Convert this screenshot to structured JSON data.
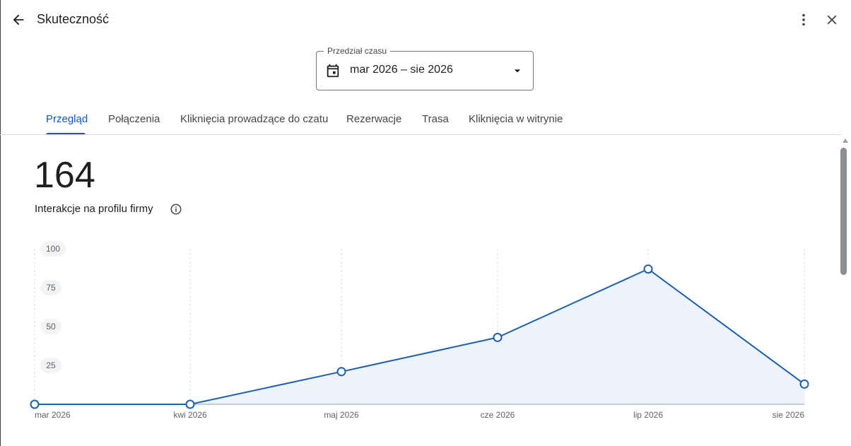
{
  "header": {
    "title": "Skuteczność",
    "back_icon": "arrow-back-icon",
    "more_icon": "more-vert-icon",
    "close_icon": "close-icon"
  },
  "date_range": {
    "label": "Przedział czasu",
    "value": "mar 2026 – sie 2026",
    "icon": "calendar-icon"
  },
  "tabs": [
    {
      "label": "Przegląd",
      "active": true
    },
    {
      "label": "Połączenia"
    },
    {
      "label": "Kliknięcia prowadzące do czatu"
    },
    {
      "label": "Rezerwacje"
    },
    {
      "label": "Trasa"
    },
    {
      "label": "Kliknięcia w witrynie"
    }
  ],
  "summary": {
    "total": "164",
    "label": "Interakcje na profilu firmy",
    "info_icon": "info-icon"
  },
  "colors": {
    "accent": "#0b57d0",
    "line": "#1a5fb4",
    "area_fill": "#eef3fb"
  },
  "chart_data": {
    "type": "area",
    "categories": [
      "mar 2026",
      "kwi 2026",
      "maj 2026",
      "cze 2026",
      "lip 2026",
      "sie 2026"
    ],
    "values": [
      0,
      0,
      21,
      43,
      87,
      13
    ],
    "yticks": [
      25,
      50,
      75,
      100
    ],
    "ylim": [
      0,
      100
    ],
    "grid": "vertical dashed",
    "markers": "hollow circles"
  }
}
